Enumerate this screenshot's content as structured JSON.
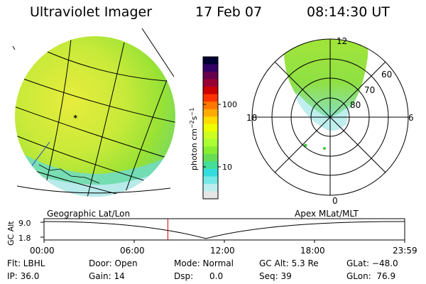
{
  "header": {
    "title": "Ultraviolet Imager",
    "date": "17 Feb 07",
    "time": "08:14:30 UT"
  },
  "colorbar": {
    "label_prefix": "photon cm",
    "label_exp1": "−2",
    "label_mid": "s",
    "label_exp2": "−1",
    "ticks": [
      "100",
      "10"
    ],
    "colors": [
      "#000033",
      "#330066",
      "#66004d",
      "#990033",
      "#cc0000",
      "#ff3300",
      "#ff7700",
      "#ffaa00",
      "#ffdd00",
      "#eeff00",
      "#ccff22",
      "#aaff33",
      "#88ee33",
      "#66dd55",
      "#44dd99",
      "#33dddd",
      "#77e8e8",
      "#bbeeee",
      "#e6e6e6"
    ]
  },
  "globe_panel": {
    "label": "Geographic Lat/Lon",
    "fill_color": "#9be533",
    "limb_color": "#cfe84a",
    "dayside_color": "#eeee33",
    "edge_color": "#6edcc8"
  },
  "polar_panel": {
    "label": "Apex MLat/MLT",
    "mlt_labels": {
      "top": "12",
      "left": "18",
      "right": "6",
      "bottom": "0"
    },
    "lat_labels": [
      "60",
      "70",
      "80"
    ],
    "aurora_color": "#9be533",
    "aurora_inner": "#66dd99",
    "aurora_pale": "#bfeeee"
  },
  "altitude_plot": {
    "ylabel": "GC Alt",
    "yticks": [
      "9.0",
      "1.8"
    ],
    "xticks": [
      "00:00",
      "06:00",
      "12:00",
      "18:00",
      "23:59"
    ],
    "current_time_marker_hours": 8.24,
    "marker_color": "#cc0000"
  },
  "footer": {
    "flt": "Flt: LBHL",
    "door": "Door: Open",
    "mode": "Mode: Normal",
    "gc_alt": "GC Alt: 5.3 Re",
    "glat": "GLat: −48.0",
    "ip": "IP: 36.0",
    "gain": "Gain: 14",
    "dsp": "Dsp:      0.0",
    "seq": "Seq: 39",
    "glon": "GLon:  76.9"
  }
}
